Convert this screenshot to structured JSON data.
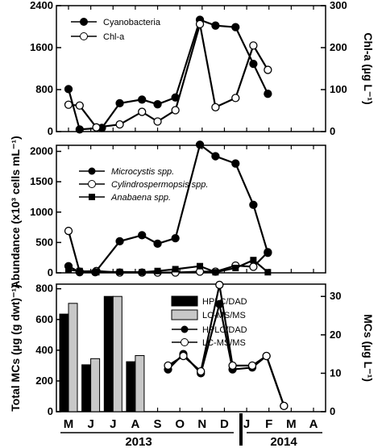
{
  "chart_data": [
    {
      "type": "line",
      "xlabel": "",
      "ylabel": "Abundance (x10³ cells mL⁻¹)",
      "ylabel_right": "Chl-a (µg L⁻¹)",
      "ylim": [
        0,
        2400
      ],
      "ylim_right": [
        0,
        300
      ],
      "yticks": [
        "0",
        "800",
        "1600",
        "2400"
      ],
      "yticks_right": [
        "0",
        "100",
        "200",
        "300"
      ],
      "series": [
        {
          "name": "Cyanobacteria",
          "marker": "filled-circle",
          "axis": "left",
          "points": [
            [
              0,
              810
            ],
            [
              0.5,
              40
            ],
            [
              1.5,
              70
            ],
            [
              2.3,
              540
            ],
            [
              3.3,
              610
            ],
            [
              4,
              520
            ],
            [
              4.8,
              650
            ],
            [
              5.9,
              2130
            ],
            [
              6.6,
              2020
            ],
            [
              7.5,
              1990
            ],
            [
              8.3,
              1290
            ],
            [
              8.95,
              720
            ]
          ]
        },
        {
          "name": "Chl-a",
          "marker": "open-circle",
          "axis": "right",
          "points": [
            [
              0,
              64
            ],
            [
              0.5,
              62
            ],
            [
              1.25,
              10
            ],
            [
              2.3,
              17
            ],
            [
              3.3,
              47
            ],
            [
              4,
              24
            ],
            [
              4.8,
              51
            ],
            [
              5.9,
              256
            ],
            [
              6.6,
              58
            ],
            [
              7.5,
              80
            ],
            [
              8.3,
              205
            ],
            [
              8.95,
              147
            ]
          ]
        }
      ]
    },
    {
      "type": "line",
      "ylim": [
        0,
        2100
      ],
      "yticks": [
        "0",
        "500",
        "1000",
        "1500",
        "2000"
      ],
      "series": [
        {
          "name": "Microcystis spp.",
          "marker": "filled-circle",
          "points": [
            [
              0,
              110
            ],
            [
              0.5,
              10
            ],
            [
              1.2,
              10
            ],
            [
              2.3,
              520
            ],
            [
              3.3,
              620
            ],
            [
              4,
              480
            ],
            [
              4.8,
              570
            ],
            [
              5.9,
              2110
            ],
            [
              6.6,
              1920
            ],
            [
              7.5,
              1800
            ],
            [
              8.3,
              1120
            ],
            [
              8.95,
              330
            ]
          ]
        },
        {
          "name": "Cylindrospermopsis spp.",
          "marker": "open-circle",
          "points": [
            [
              0,
              690
            ],
            [
              0.5,
              20
            ],
            [
              1.25,
              30
            ],
            [
              2.3,
              5
            ],
            [
              3.3,
              5
            ],
            [
              4,
              5
            ],
            [
              4.8,
              5
            ],
            [
              5.9,
              20
            ],
            [
              6.6,
              20
            ],
            [
              7.5,
              120
            ],
            [
              8.3,
              100
            ],
            [
              8.95,
              340
            ]
          ]
        },
        {
          "name": "Anabaena spp.",
          "marker": "filled-square",
          "points": [
            [
              0,
              50
            ],
            [
              0.5,
              30
            ],
            [
              1.25,
              10
            ],
            [
              2.3,
              15
            ],
            [
              3.3,
              10
            ],
            [
              4,
              30
            ],
            [
              4.8,
              60
            ],
            [
              5.9,
              110
            ],
            [
              6.6,
              10
            ],
            [
              7.5,
              80
            ],
            [
              8.3,
              210
            ],
            [
              8.95,
              10
            ]
          ]
        }
      ]
    },
    {
      "type": "bar",
      "ylabel": "Total MCs (µg (g dwt)⁻¹)",
      "ylabel_right": "MCs (µg L⁻¹)",
      "ylim": [
        0,
        830
      ],
      "ylim_right": [
        0,
        33.2
      ],
      "yticks": [
        "0",
        "200",
        "400",
        "600",
        "800"
      ],
      "yticks_right": [
        "0",
        "10",
        "20",
        "30"
      ],
      "categories": [
        "M",
        "J",
        "J",
        "A"
      ],
      "series": [
        {
          "name": "HPLC/DAD",
          "kind": "bar",
          "color": "#000000",
          "values": [
            635,
            305,
            750,
            325
          ]
        },
        {
          "name": "LC-MS/MS",
          "kind": "bar",
          "color": "#c8c8c8",
          "values": [
            705,
            345,
            750,
            365
          ]
        },
        {
          "name": "HPLC/DAD",
          "kind": "line",
          "marker": "filled-circle",
          "points": [
            [
              4.55,
              11
            ],
            [
              5.25,
              15
            ],
            [
              6.05,
              10
            ],
            [
              6.9,
              28
            ],
            [
              7.5,
              11
            ],
            [
              8.4,
              11.5
            ],
            [
              9.05,
              14.5
            ],
            [
              9.85,
              1.5
            ]
          ]
        },
        {
          "name": "LC-MS/MS",
          "kind": "line",
          "marker": "open-circle",
          "points": [
            [
              4.55,
              12
            ],
            [
              5.25,
              14.5
            ],
            [
              6.05,
              10.5
            ],
            [
              6.9,
              33
            ],
            [
              7.5,
              12
            ],
            [
              8.4,
              12
            ],
            [
              9.05,
              14.5
            ],
            [
              9.85,
              1.5
            ]
          ]
        }
      ]
    }
  ],
  "x_axis": {
    "months": [
      "M",
      "J",
      "J",
      "A",
      "S",
      "O",
      "N",
      "D",
      "J",
      "F",
      "M",
      "A"
    ],
    "years": [
      "2013",
      "2014"
    ]
  }
}
